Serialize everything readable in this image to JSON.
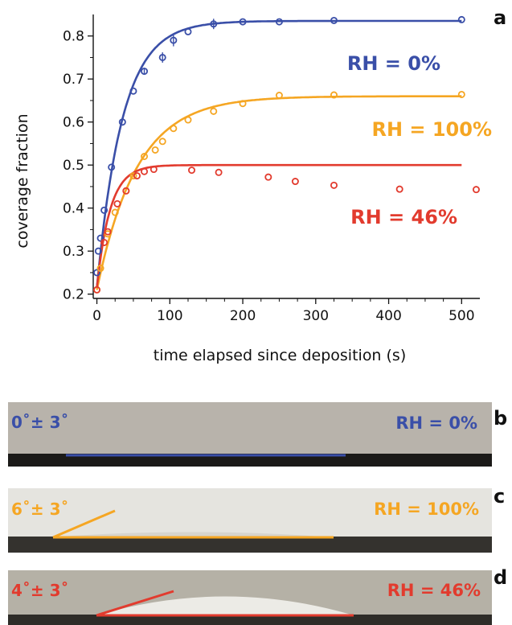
{
  "figure": {
    "panel_labels": {
      "a": "a",
      "b": "b",
      "c": "c",
      "d": "d"
    }
  },
  "chart_data": {
    "type": "scatter",
    "xlabel": "time elapsed since deposition (s)",
    "ylabel": "coverage fraction",
    "xlim": [
      -5,
      525
    ],
    "ylim": [
      0.19,
      0.85
    ],
    "xticks": [
      0,
      100,
      200,
      300,
      400,
      500
    ],
    "yticks": [
      0.2,
      0.3,
      0.4,
      0.5,
      0.6,
      0.7,
      0.8
    ],
    "ytick_labels": [
      "0.2",
      "0.3",
      "0.4",
      "0.5",
      "0.6",
      "0.7",
      "0.8"
    ],
    "grid": false,
    "series": [
      {
        "name": "RH = 0%",
        "color": "#3a4fa8",
        "points": [
          [
            0,
            0.25
          ],
          [
            2,
            0.3
          ],
          [
            5,
            0.33
          ],
          [
            10,
            0.395
          ],
          [
            20,
            0.495
          ],
          [
            35,
            0.6
          ],
          [
            50,
            0.672
          ],
          [
            65,
            0.718
          ],
          [
            90,
            0.75
          ],
          [
            105,
            0.79
          ],
          [
            125,
            0.81
          ],
          [
            160,
            0.828
          ],
          [
            200,
            0.833
          ],
          [
            250,
            0.833
          ],
          [
            325,
            0.836
          ],
          [
            500,
            0.838
          ]
        ],
        "error": [
          0,
          0,
          0,
          0,
          0,
          0,
          0,
          0.008,
          0.012,
          0.014,
          0,
          0.012,
          0,
          0,
          0,
          0
        ],
        "fit": {
          "y0": 0.215,
          "yinf": 0.835,
          "tau": 35
        }
      },
      {
        "name": "RH = 100%",
        "color": "#f5a623",
        "points": [
          [
            0,
            0.21
          ],
          [
            5,
            0.26
          ],
          [
            15,
            0.34
          ],
          [
            25,
            0.39
          ],
          [
            40,
            0.44
          ],
          [
            50,
            0.475
          ],
          [
            65,
            0.52
          ],
          [
            80,
            0.535
          ],
          [
            90,
            0.555
          ],
          [
            105,
            0.585
          ],
          [
            125,
            0.605
          ],
          [
            160,
            0.625
          ],
          [
            200,
            0.643
          ],
          [
            250,
            0.662
          ],
          [
            325,
            0.663
          ],
          [
            500,
            0.664
          ]
        ],
        "fit": {
          "y0": 0.21,
          "yinf": 0.66,
          "tau": 55
        }
      },
      {
        "name": "RH = 46%",
        "color": "#e23b2e",
        "points": [
          [
            0,
            0.21
          ],
          [
            10,
            0.32
          ],
          [
            15,
            0.345
          ],
          [
            28,
            0.41
          ],
          [
            40,
            0.44
          ],
          [
            55,
            0.475
          ],
          [
            65,
            0.485
          ],
          [
            78,
            0.49
          ],
          [
            130,
            0.488
          ],
          [
            167,
            0.483
          ],
          [
            235,
            0.472
          ],
          [
            272,
            0.462
          ],
          [
            325,
            0.453
          ],
          [
            415,
            0.444
          ],
          [
            520,
            0.443
          ]
        ],
        "fit": {
          "y0": 0.215,
          "yinf": 0.5,
          "tau": 18
        }
      }
    ]
  },
  "photos": [
    {
      "angle_label": "0˚± 3˚",
      "rh_label": "RH = 0%",
      "color": "#3a4fa8",
      "tangent_deg": 0,
      "bg": "#b8b3ab"
    },
    {
      "angle_label": "6˚± 3˚",
      "rh_label": "RH = 100%",
      "color": "#f5a623",
      "tangent_deg": 24,
      "bg": "#e5e4df"
    },
    {
      "angle_label": "4˚± 3˚",
      "rh_label": "RH = 46%",
      "color": "#e23b2e",
      "tangent_deg": 20,
      "bg": "#b5b1a6"
    }
  ]
}
